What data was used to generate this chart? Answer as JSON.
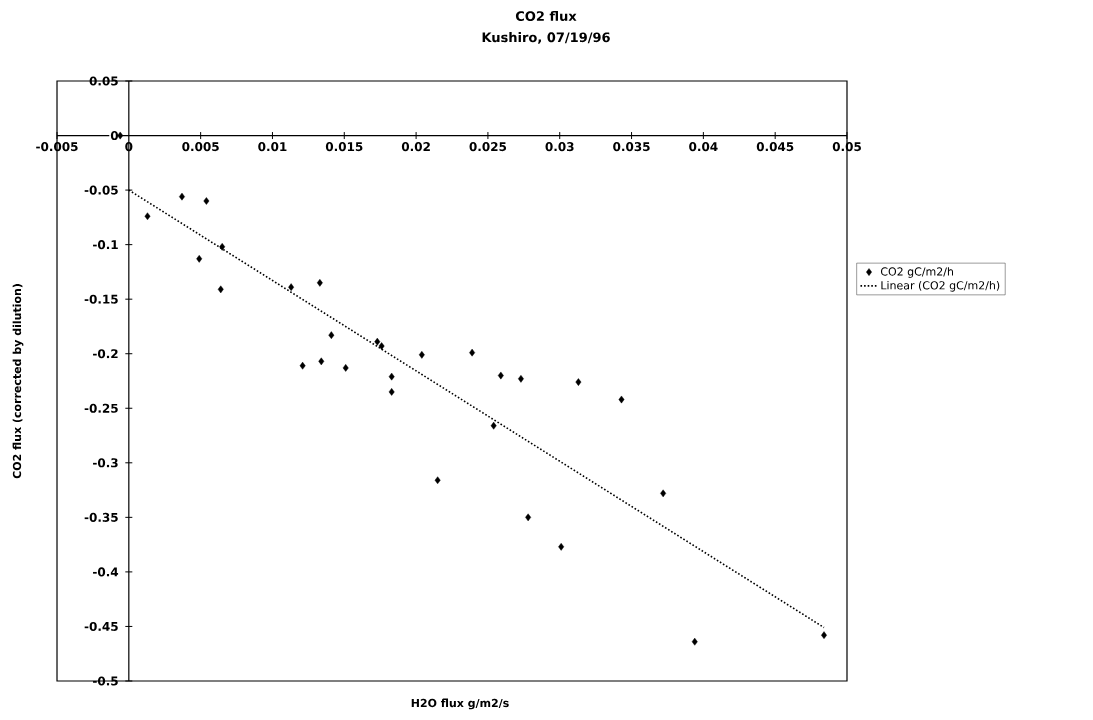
{
  "chart_data": {
    "type": "scatter",
    "title": "CO2 flux",
    "subtitle": "Kushiro, 07/19/96",
    "xlabel": "H2O flux g/m2/s",
    "ylabel": "CO2 flux (corrected by dilution)",
    "xlim": [
      -0.005,
      0.05
    ],
    "xticks": [
      -0.005,
      0,
      0.005,
      0.01,
      0.015,
      0.02,
      0.025,
      0.03,
      0.035,
      0.04,
      0.045,
      0.05
    ],
    "ylim": [
      -0.5,
      0.05
    ],
    "yticks": [
      0.05,
      0,
      -0.05,
      -0.1,
      -0.15,
      -0.2,
      -0.25,
      -0.3,
      -0.35,
      -0.4,
      -0.45,
      -0.5
    ],
    "grid": false,
    "legend": "right",
    "series": [
      {
        "name": "CO2 gC/m2/h",
        "marker": "diamond",
        "color": "#000000",
        "x": [
          -0.0006,
          0.0013,
          0.0037,
          0.0054,
          0.0065,
          0.0049,
          0.0064,
          0.0113,
          0.0133,
          0.0141,
          0.0173,
          0.0176,
          0.0121,
          0.0134,
          0.0151,
          0.0183,
          0.0183,
          0.0204,
          0.0215,
          0.0239,
          0.0259,
          0.0273,
          0.0313,
          0.0343,
          0.0254,
          0.0372,
          0.0278,
          0.0301,
          0.0394,
          0.0484
        ],
        "values": [
          0.0,
          -0.074,
          -0.056,
          -0.06,
          -0.102,
          -0.113,
          -0.141,
          -0.139,
          -0.135,
          -0.183,
          -0.189,
          -0.193,
          -0.211,
          -0.207,
          -0.213,
          -0.221,
          -0.235,
          -0.201,
          -0.316,
          -0.199,
          -0.22,
          -0.223,
          -0.226,
          -0.242,
          -0.266,
          -0.328,
          -0.35,
          -0.377,
          -0.464,
          -0.458
        ]
      },
      {
        "name": "Linear (CO2 gC/m2/h)",
        "type": "line",
        "line_style": "dotted",
        "color": "#000000",
        "x": [
          0,
          0.0484
        ],
        "values": [
          -0.05,
          -0.451
        ]
      }
    ]
  }
}
